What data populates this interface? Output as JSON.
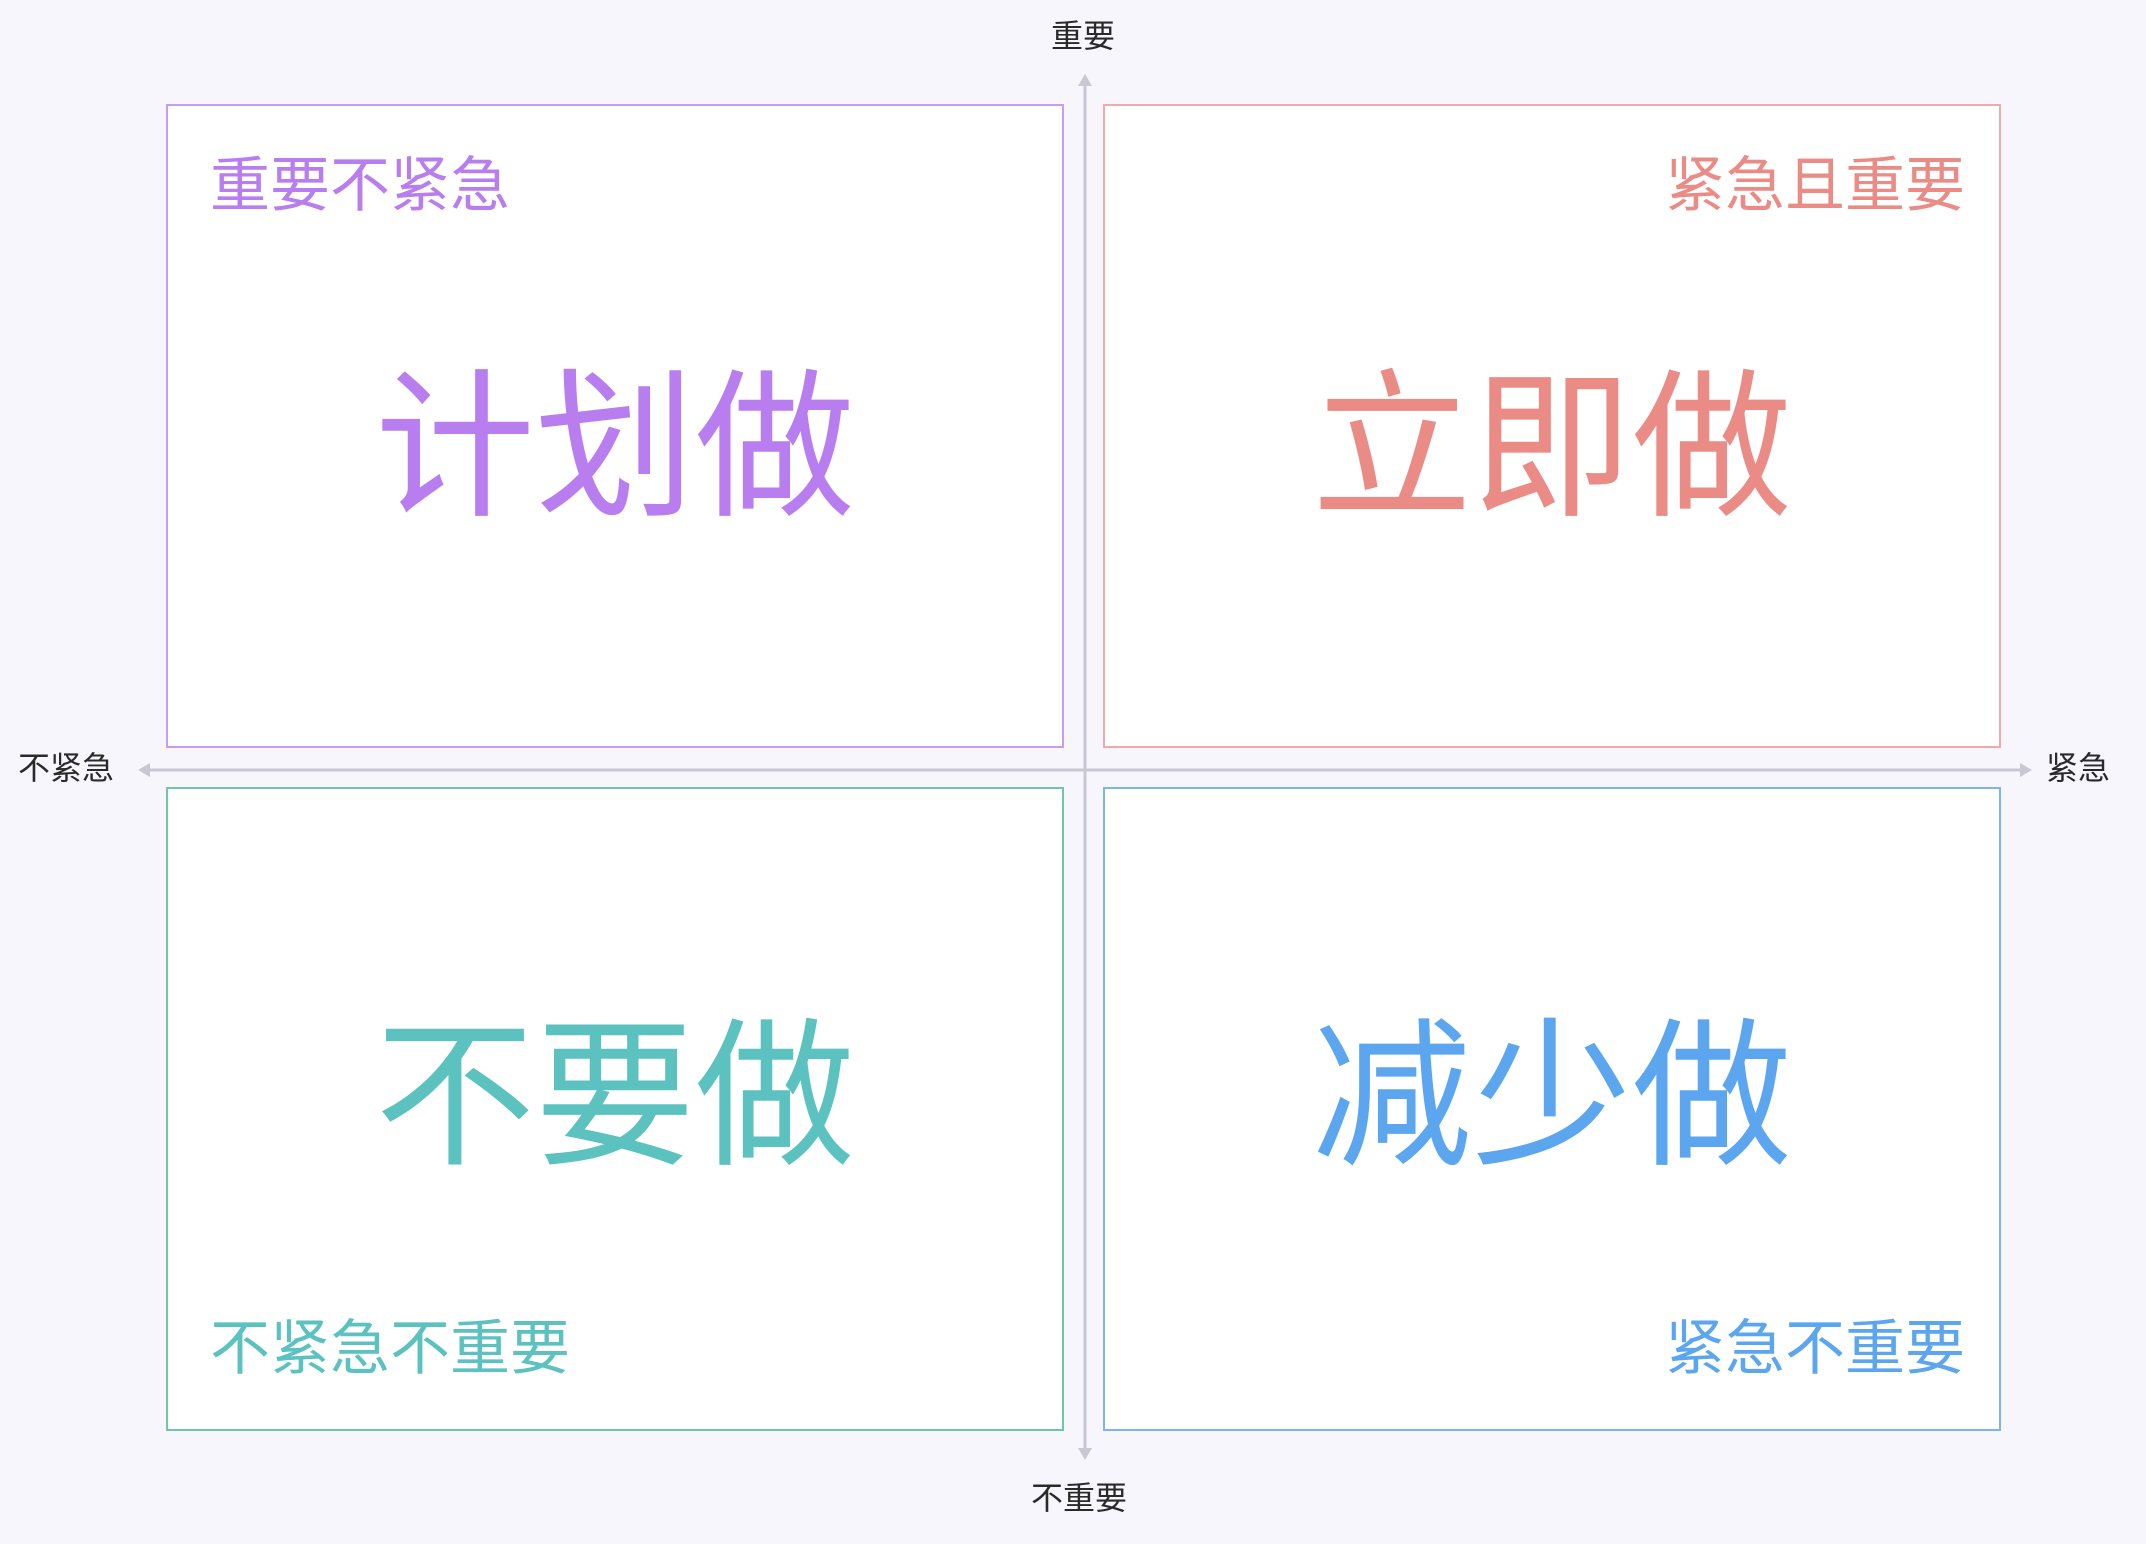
{
  "axes": {
    "top_label": "重要",
    "bottom_label": "不重要",
    "left_label": "不紧急",
    "right_label": "紧急"
  },
  "quadrants": {
    "top_left": {
      "caption": "重要不紧急",
      "action": "计划做",
      "color": "#b87ef0"
    },
    "top_right": {
      "caption": "紧急且重要",
      "action": "立即做",
      "color": "#ea8b86"
    },
    "bottom_left": {
      "caption": "不紧急不重要",
      "action": "不要做",
      "color": "#5cc2c0"
    },
    "bottom_right": {
      "caption": "紧急不重要",
      "action": "减少做",
      "color": "#5ba6ef"
    }
  },
  "colors": {
    "background": "#f8f6fd",
    "axis": "#c9c7cf"
  }
}
